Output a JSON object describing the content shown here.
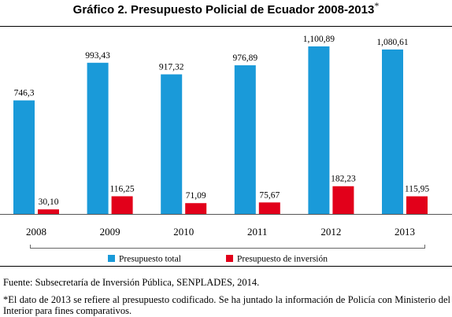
{
  "chart_data": {
    "type": "bar",
    "title": "Gráfico 2. Presupuesto Policial de Ecuador 2008-2013",
    "title_marker": "*",
    "categories": [
      "2008",
      "2009",
      "2010",
      "2011",
      "2012",
      "2013"
    ],
    "series": [
      {
        "name": "Presupuesto total",
        "color": "#1a9ad9",
        "values": [
          746.3,
          993.43,
          917.32,
          976.89,
          1100.89,
          1080.61
        ],
        "labels": [
          "746,3",
          "993,43",
          "917,32",
          "976,89",
          "1,100,89",
          "1,080,61"
        ]
      },
      {
        "name": "Presupuesto de inversión",
        "color": "#e2001a",
        "values": [
          30.1,
          116.25,
          71.09,
          75.67,
          182.23,
          115.95
        ],
        "labels": [
          "30,10",
          "116,25",
          "71,09",
          "75,67",
          "182,23",
          "115,95"
        ]
      }
    ],
    "ylim": [
      0,
      1100.89
    ],
    "xlabel": "",
    "ylabel": "",
    "grid": false,
    "legend_position": "bottom"
  },
  "notes": {
    "source": "Fuente: Subsecretaría de Inversión Pública, SENPLADES, 2014.",
    "footnote": "*El dato de 2013 se refiere al presupuesto codificado. Se ha juntado la información de Policía con Ministerio del Interior para fines comparativos."
  }
}
